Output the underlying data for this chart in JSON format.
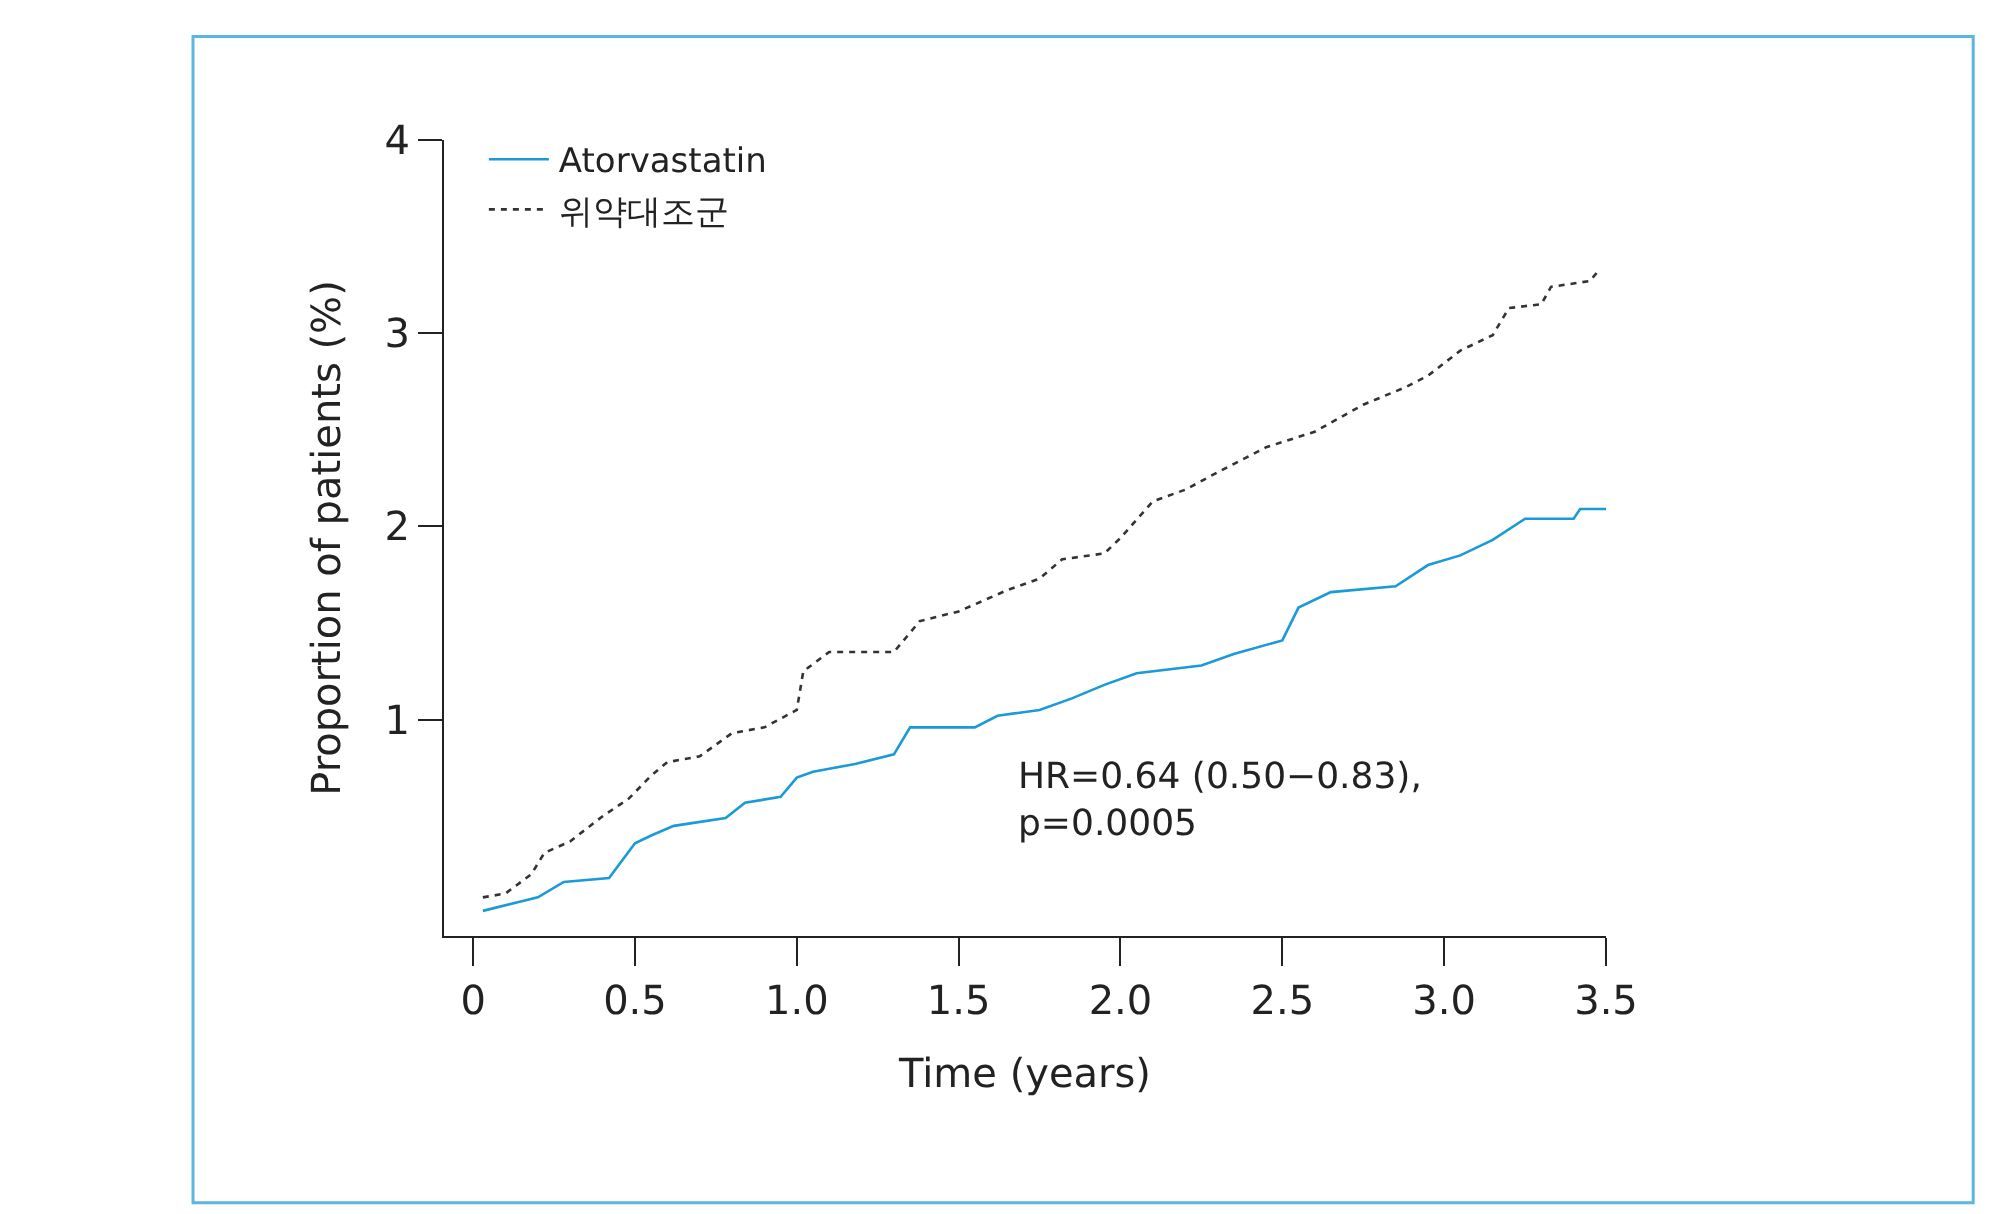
{
  "chart_data": {
    "type": "line",
    "xlabel": "Time (years)",
    "ylabel": "Proportion of patients (%)",
    "xlim": [
      -0.09,
      3.5
    ],
    "xticks": [
      0,
      0.5,
      {
        "value": 1,
        "label": "1.0"
      },
      1.5,
      {
        "value": 2,
        "label": "2.0"
      },
      2.5,
      {
        "value": 3,
        "label": "3.0"
      },
      3.5
    ],
    "ylim": [
      -0.12,
      4
    ],
    "yticks": [
      1,
      2,
      3,
      4
    ],
    "legend": "top left",
    "marker": "none",
    "annotations": [
      "HR=0.64 (0.50−0.83),\np=0.0005"
    ],
    "series": [
      {
        "name": "Atorvastatin",
        "color": "#1a9ad6",
        "line_style": "solid",
        "x": [
          0.03,
          0.15,
          0.2,
          0.28,
          0.42,
          0.5,
          0.55,
          0.62,
          0.78,
          0.84,
          0.95,
          1.0,
          1.05,
          1.18,
          1.3,
          1.35,
          1.55,
          1.62,
          1.75,
          1.85,
          1.95,
          2.05,
          2.25,
          2.35,
          2.5,
          2.55,
          2.65,
          2.85,
          2.95,
          3.05,
          3.15,
          3.25,
          3.4,
          3.42,
          3.5
        ],
        "values": [
          0.01,
          0.06,
          0.08,
          0.16,
          0.18,
          0.36,
          0.4,
          0.45,
          0.49,
          0.57,
          0.6,
          0.7,
          0.73,
          0.77,
          0.82,
          0.96,
          0.96,
          1.02,
          1.05,
          1.11,
          1.18,
          1.24,
          1.28,
          1.34,
          1.41,
          1.58,
          1.66,
          1.69,
          1.8,
          1.85,
          1.93,
          2.04,
          2.04,
          2.09,
          2.09
        ]
      },
      {
        "name": "위약대조군",
        "color": "#333333",
        "line_style": "dotted",
        "x": [
          0.03,
          0.1,
          0.18,
          0.22,
          0.3,
          0.4,
          0.48,
          0.55,
          0.6,
          0.7,
          0.8,
          0.9,
          1.0,
          1.02,
          1.1,
          1.3,
          1.38,
          1.5,
          1.65,
          1.75,
          1.82,
          1.95,
          2.0,
          2.1,
          2.2,
          2.3,
          2.45,
          2.6,
          2.75,
          2.88,
          2.95,
          3.05,
          3.15,
          3.2,
          3.3,
          3.33,
          3.45,
          3.48
        ],
        "values": [
          0.08,
          0.1,
          0.2,
          0.31,
          0.37,
          0.5,
          0.59,
          0.71,
          0.78,
          0.81,
          0.93,
          0.96,
          1.05,
          1.25,
          1.35,
          1.35,
          1.51,
          1.56,
          1.67,
          1.73,
          1.83,
          1.86,
          1.94,
          2.13,
          2.19,
          2.28,
          2.41,
          2.49,
          2.63,
          2.72,
          2.78,
          2.91,
          2.99,
          3.13,
          3.15,
          3.24,
          3.27,
          3.33
        ]
      }
    ]
  }
}
